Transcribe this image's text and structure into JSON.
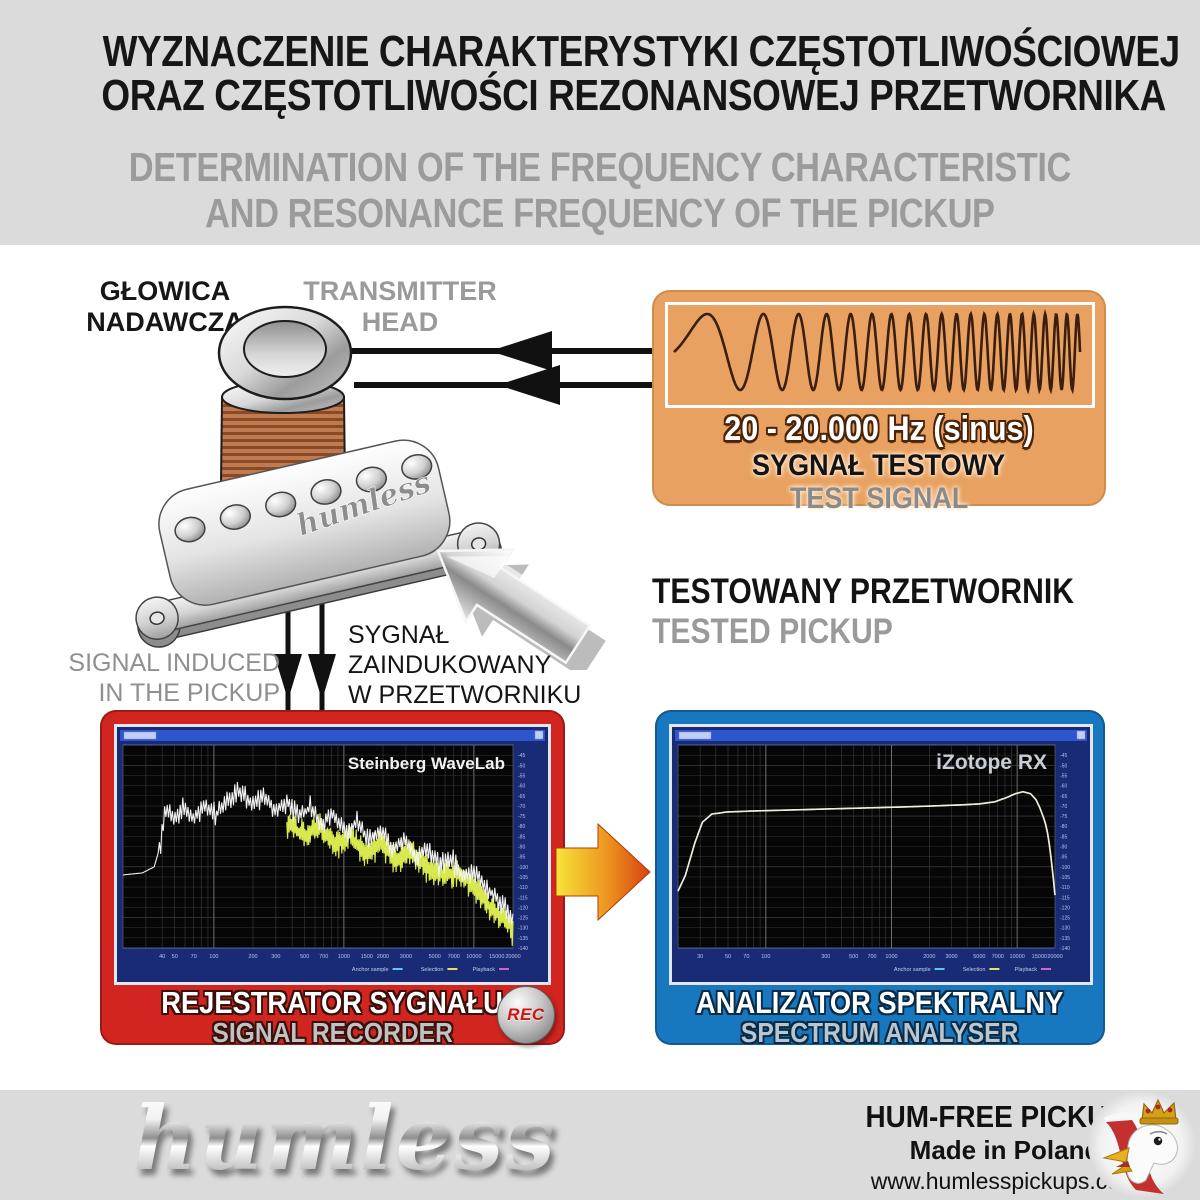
{
  "header": {
    "title_pl": [
      "WYZNACZENIE CHARAKTERYSTYKI CZĘSTOTLIWOŚCIOWEJ",
      "ORAZ CZĘSTOTLIWOŚCI REZONANSOWEJ PRZETWORNIKA"
    ],
    "subtitle_en": [
      "DETERMINATION OF THE FREQUENCY CHARACTERISTIC",
      "AND RESONANCE FREQUENCY OF THE PICKUP"
    ]
  },
  "diagram": {
    "transmitter_head": {
      "label_pl_lines": [
        "GŁOWICA",
        "NADAWCZA"
      ],
      "label_en_lines": [
        "TRANSMITTER",
        "HEAD"
      ]
    },
    "test_signal": {
      "frequency_range": "20 - 20.000 Hz (sinus)",
      "label_pl": "SYGNAŁ TESTOWY",
      "label_en": "TEST SIGNAL",
      "box_color": "#e8a160"
    },
    "tested_pickup": {
      "label_pl": "TESTOWANY PRZETWORNIK",
      "label_en": "TESTED PICKUP",
      "brand_engraving": "humless"
    },
    "induced_signal": {
      "label_en_lines": [
        "SIGNAL INDUCED",
        "IN THE PICKUP"
      ],
      "label_pl_lines": [
        "SYGNAŁ",
        "ZAINDUKOWANY",
        "W PRZETWORNIKU"
      ]
    },
    "signal_recorder": {
      "label_pl": "REJESTRATOR SYGNAŁU",
      "label_en": "SIGNAL RECORDER",
      "rec_badge": "REC",
      "box_color": "#d2251f"
    },
    "spectrum_analyser": {
      "label_pl": "ANALIZATOR SPEKTRALNY",
      "label_en": "SPECTRUM ANALYSER",
      "box_color": "#1878bf"
    }
  },
  "footer": {
    "logo_text": "humless",
    "tagline": "HUM-FREE PICKUPS",
    "origin": "Made in Poland",
    "website": "www.humlesspickups.com"
  },
  "chart_data": [
    {
      "type": "line",
      "title": "Steinberg WaveLab",
      "role": "signal-recorder-spectrum",
      "xscale": "log",
      "xlim_hz": [
        20,
        20000
      ],
      "ylim_db": [
        -40,
        -140
      ],
      "y_tick_step_db": 5,
      "x_tick_labels": [
        "40",
        "50",
        "70",
        "100",
        "200",
        "300",
        "500",
        "700",
        "1000",
        "1500",
        "2000",
        "3000",
        "5000",
        "7000",
        "10000",
        "15000",
        "20000"
      ],
      "legend": [
        {
          "label": "Anchor sample",
          "color": "#5ac8f0"
        },
        {
          "label": "Selection",
          "color": "#e8e060"
        },
        {
          "label": "Playback",
          "color": "#cc66cc"
        }
      ],
      "app_label_color": "#f2f2f2",
      "app_label_size": 17,
      "series": [
        {
          "name": "playback-spectrum",
          "color": "#d8e84e",
          "width": 1.2,
          "jitter_db": 9,
          "jitter_from_x": 0.42,
          "x_start": 0.42,
          "envelope": [
            [
              0.42,
              -78
            ],
            [
              0.46,
              -85
            ],
            [
              0.5,
              -80
            ],
            [
              0.54,
              -89
            ],
            [
              0.58,
              -84
            ],
            [
              0.62,
              -93
            ],
            [
              0.66,
              -88
            ],
            [
              0.7,
              -97
            ],
            [
              0.74,
              -92
            ],
            [
              0.78,
              -101
            ],
            [
              0.82,
              -104
            ],
            [
              0.86,
              -102
            ],
            [
              0.9,
              -111
            ],
            [
              0.94,
              -119
            ],
            [
              0.97,
              -125
            ],
            [
              1.0,
              -131
            ]
          ]
        },
        {
          "name": "recorded-spectrum",
          "color": "#f2f2f2",
          "width": 1.1,
          "jitter_db": 7,
          "jitter_from_x": 0.09,
          "x_start": 0.0,
          "envelope": [
            [
              0.0,
              -104
            ],
            [
              0.05,
              -103
            ],
            [
              0.08,
              -100
            ],
            [
              0.095,
              -90
            ],
            [
              0.11,
              -72
            ],
            [
              0.13,
              -76
            ],
            [
              0.155,
              -71
            ],
            [
              0.18,
              -77
            ],
            [
              0.21,
              -70
            ],
            [
              0.24,
              -74
            ],
            [
              0.27,
              -67
            ],
            [
              0.3,
              -63
            ],
            [
              0.33,
              -69
            ],
            [
              0.36,
              -65
            ],
            [
              0.39,
              -72
            ],
            [
              0.42,
              -68
            ],
            [
              0.45,
              -75
            ],
            [
              0.48,
              -71
            ],
            [
              0.51,
              -79
            ],
            [
              0.54,
              -74
            ],
            [
              0.57,
              -83
            ],
            [
              0.6,
              -78
            ],
            [
              0.63,
              -87
            ],
            [
              0.66,
              -82
            ],
            [
              0.69,
              -91
            ],
            [
              0.72,
              -86
            ],
            [
              0.75,
              -95
            ],
            [
              0.78,
              -91
            ],
            [
              0.81,
              -99
            ],
            [
              0.84,
              -96
            ],
            [
              0.87,
              -104
            ],
            [
              0.9,
              -102
            ],
            [
              0.93,
              -110
            ],
            [
              0.96,
              -116
            ],
            [
              0.98,
              -121
            ],
            [
              1.0,
              -126
            ]
          ]
        }
      ]
    },
    {
      "type": "line",
      "title": "iZotope RX",
      "role": "spectrum-analyser-frequency-response",
      "xscale": "log",
      "xlim_hz": [
        20,
        20000
      ],
      "ylim_db": [
        -40,
        -140
      ],
      "y_tick_step_db": 5,
      "x_tick_labels": [
        "30",
        "50",
        "70",
        "100",
        "300",
        "500",
        "700",
        "1000",
        "2000",
        "3000",
        "5000",
        "7000",
        "10000",
        "15000",
        "20000"
      ],
      "legend": [
        {
          "label": "Anchor sample",
          "color": "#5ac8f0"
        },
        {
          "label": "Selection",
          "color": "#e8e060"
        },
        {
          "label": "Playback",
          "color": "#cc66cc"
        }
      ],
      "app_label_color": "#c8ccd4",
      "app_label_size": 21,
      "series": [
        {
          "name": "frequency-response",
          "color": "#eeeedd",
          "width": 1.7,
          "jitter_db": 0,
          "jitter_from_x": 0,
          "x_start": 0.0,
          "envelope": [
            [
              0.0,
              -112
            ],
            [
              0.02,
              -104
            ],
            [
              0.045,
              -88
            ],
            [
              0.065,
              -78
            ],
            [
              0.09,
              -74
            ],
            [
              0.13,
              -73
            ],
            [
              0.2,
              -72.5
            ],
            [
              0.3,
              -72
            ],
            [
              0.4,
              -71.5
            ],
            [
              0.5,
              -71
            ],
            [
              0.6,
              -70.5
            ],
            [
              0.68,
              -70
            ],
            [
              0.75,
              -69.5
            ],
            [
              0.8,
              -69
            ],
            [
              0.84,
              -68
            ],
            [
              0.87,
              -66
            ],
            [
              0.895,
              -64
            ],
            [
              0.915,
              -63
            ],
            [
              0.935,
              -64
            ],
            [
              0.95,
              -67
            ],
            [
              0.96,
              -71
            ],
            [
              0.97,
              -76
            ],
            [
              0.978,
              -81
            ],
            [
              0.986,
              -90
            ],
            [
              0.993,
              -101
            ],
            [
              1.0,
              -114
            ]
          ]
        }
      ]
    }
  ]
}
